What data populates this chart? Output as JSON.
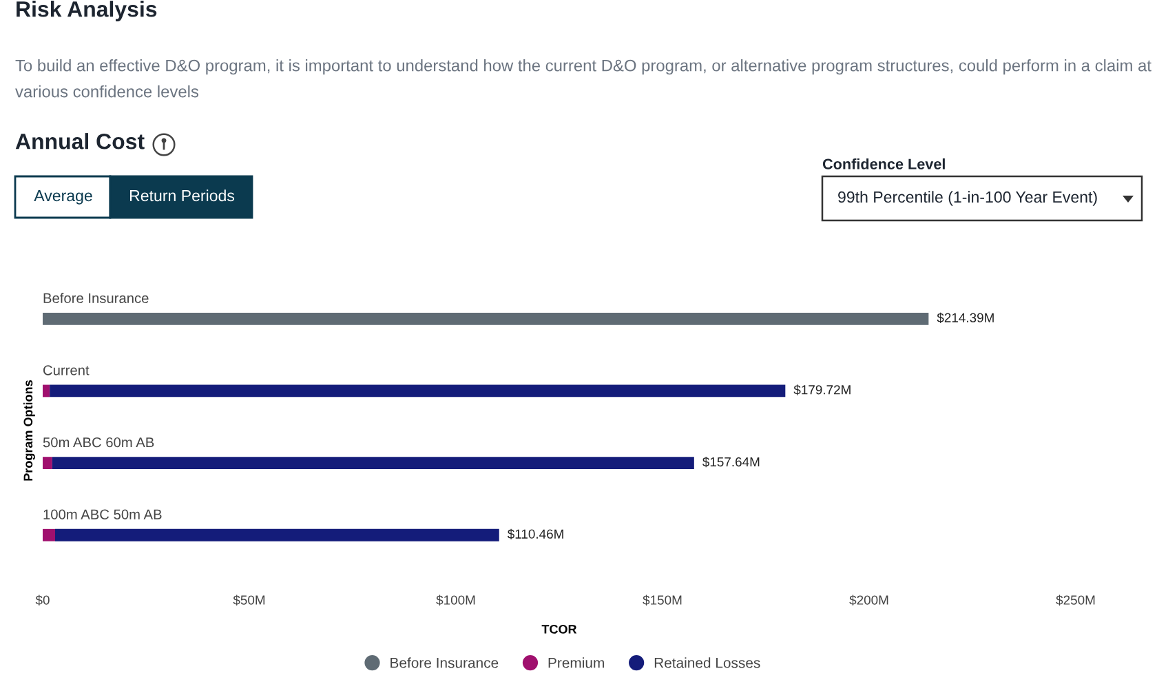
{
  "chart_data": {
    "type": "bar",
    "orientation": "horizontal",
    "stacked": true,
    "title": "Risk Analysis",
    "subtitle": "To build an effective D&O program, it is important to understand how the current D&O program, or alternative program structures, could perform in a claim at various confidence levels",
    "annotations": [
      "Annual Cost",
      "Average",
      "Return Periods",
      "Confidence Level",
      "99th Percentile (1-in-100 Year Event)"
    ],
    "categories": [
      "Before Insurance",
      "Current",
      "50m ABC 60m AB",
      "100m ABC 50m AB"
    ],
    "series": [
      {
        "name": "Before Insurance",
        "color": "#5f6b74",
        "values": [
          214.39,
          null,
          null,
          null
        ]
      },
      {
        "name": "Premium",
        "color": "#a0106e",
        "values": [
          null,
          1.7,
          2.3,
          3.0
        ]
      },
      {
        "name": "Retained Losses",
        "color": "#141c7a",
        "values": [
          null,
          178.02,
          155.34,
          107.46
        ]
      }
    ],
    "totals": [
      "$214.39M",
      "$179.72M",
      "$157.64M",
      "$110.46M"
    ],
    "xlabel": "TCOR",
    "ylabel": "Program Options",
    "xlim": [
      0,
      250
    ],
    "xticks": [
      {
        "value": 0,
        "label": "$0"
      },
      {
        "value": 50,
        "label": "$50M"
      },
      {
        "value": 100,
        "label": "$100M"
      },
      {
        "value": 150,
        "label": "$150M"
      },
      {
        "value": 200,
        "label": "$200M"
      },
      {
        "value": 250,
        "label": "$250M"
      }
    ],
    "legend": "bottom",
    "grid": false
  }
}
